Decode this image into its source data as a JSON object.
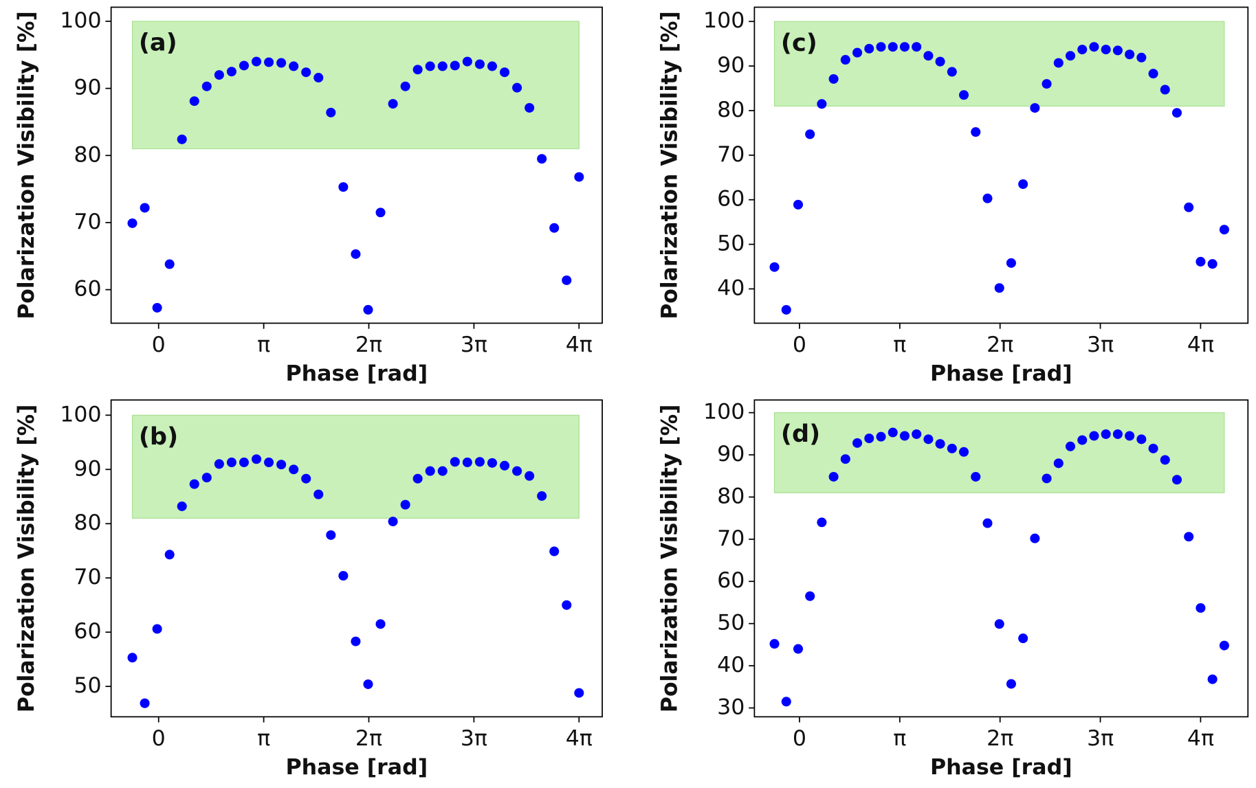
{
  "chart_data": [
    {
      "type": "scatter",
      "panel_label": "(a)",
      "xlabel": "Phase [rad]",
      "ylabel": "Polarization Visibility [%]",
      "x": [
        -0.785,
        -0.414,
        -0.043,
        0.328,
        0.698,
        1.069,
        1.44,
        1.811,
        2.182,
        2.553,
        2.924,
        3.295,
        3.666,
        4.037,
        4.407,
        4.778,
        5.149,
        5.52,
        5.891,
        6.262,
        6.633,
        7.004,
        7.375,
        7.745,
        8.116,
        8.487,
        8.858,
        9.229,
        9.6,
        9.971,
        10.342,
        10.713,
        11.084,
        11.454,
        11.825,
        12.196,
        12.567
      ],
      "series": [
        {
          "color": "#0000ff",
          "values": [
            69.9,
            72.2,
            57.3,
            63.8,
            82.4,
            88.1,
            90.3,
            92.0,
            92.5,
            93.4,
            94.0,
            93.9,
            93.8,
            93.3,
            92.4,
            91.6,
            86.4,
            75.3,
            65.3,
            57.0,
            71.5,
            87.7,
            90.3,
            92.8,
            93.3,
            93.3,
            93.4,
            94.0,
            93.6,
            93.3,
            92.4,
            90.1,
            87.1,
            79.5,
            69.2,
            61.4,
            76.8
          ]
        }
      ],
      "xlim": [
        -1.42,
        13.26
      ],
      "ylim": [
        55.0,
        102.1
      ],
      "xticks": [
        0,
        {
          "value": 3.14159,
          "label": "π"
        },
        {
          "value": 6.28319,
          "label": "2π"
        },
        {
          "value": 9.42478,
          "label": "3π"
        },
        {
          "value": 12.56637,
          "label": "4π"
        }
      ],
      "yticks": [
        60,
        70,
        80,
        90,
        100
      ],
      "band": {
        "xlim": [
          -0.785,
          12.567
        ],
        "ylim": [
          81,
          100
        ],
        "color": "#c8f0b8"
      }
    },
    {
      "type": "scatter",
      "panel_label": "(b)",
      "xlabel": "Phase [rad]",
      "ylabel": "Polarization Visibility [%]",
      "x": [
        -0.785,
        -0.414,
        -0.043,
        0.328,
        0.698,
        1.069,
        1.44,
        1.811,
        2.182,
        2.553,
        2.924,
        3.295,
        3.666,
        4.037,
        4.407,
        4.778,
        5.149,
        5.52,
        5.891,
        6.262,
        6.633,
        7.004,
        7.375,
        7.745,
        8.116,
        8.487,
        8.858,
        9.229,
        9.6,
        9.971,
        10.342,
        10.713,
        11.084,
        11.454,
        11.825,
        12.196,
        12.567
      ],
      "series": [
        {
          "color": "#0000ff",
          "values": [
            55.3,
            46.9,
            60.6,
            74.3,
            83.2,
            87.3,
            88.5,
            91.0,
            91.3,
            91.3,
            91.9,
            91.3,
            90.9,
            90.0,
            88.3,
            85.4,
            77.9,
            70.4,
            58.3,
            50.4,
            61.5,
            80.4,
            83.5,
            88.3,
            89.7,
            89.7,
            91.4,
            91.3,
            91.4,
            91.2,
            90.7,
            89.7,
            88.8,
            85.1,
            74.9,
            65.0,
            48.8
          ]
        }
      ],
      "xlim": [
        -1.42,
        13.26
      ],
      "ylim": [
        44.4,
        102.8
      ],
      "xticks": [
        0,
        {
          "value": 3.14159,
          "label": "π"
        },
        {
          "value": 6.28319,
          "label": "2π"
        },
        {
          "value": 9.42478,
          "label": "3π"
        },
        {
          "value": 12.56637,
          "label": "4π"
        }
      ],
      "yticks": [
        50,
        60,
        70,
        80,
        90,
        100
      ],
      "band": {
        "xlim": [
          -0.785,
          12.567
        ],
        "ylim": [
          81,
          100
        ],
        "color": "#c8f0b8"
      }
    },
    {
      "type": "scatter",
      "panel_label": "(c)",
      "xlabel": "Phase [rad]",
      "ylabel": "Polarization Visibility [%]",
      "x": [
        -0.785,
        -0.414,
        -0.043,
        0.328,
        0.698,
        1.069,
        1.44,
        1.811,
        2.182,
        2.553,
        2.924,
        3.295,
        3.666,
        4.037,
        4.407,
        4.778,
        5.149,
        5.52,
        5.891,
        6.262,
        6.633,
        7.004,
        7.375,
        7.745,
        8.116,
        8.487,
        8.858,
        9.229,
        9.6,
        9.971,
        10.342,
        10.713,
        11.084,
        11.454,
        11.825,
        12.196,
        12.567,
        12.938,
        13.309
      ],
      "series": [
        {
          "color": "#0000ff",
          "values": [
            44.9,
            35.3,
            58.9,
            74.7,
            81.5,
            87.1,
            91.4,
            93.0,
            93.9,
            94.3,
            94.3,
            94.3,
            94.3,
            92.3,
            91.0,
            88.7,
            83.5,
            75.2,
            60.3,
            40.2,
            45.8,
            63.5,
            80.6,
            86.0,
            90.7,
            92.3,
            93.7,
            94.3,
            93.7,
            93.5,
            92.6,
            91.9,
            88.3,
            84.7,
            79.5,
            58.3,
            46.1,
            45.6,
            53.3
          ]
        }
      ],
      "xlim": [
        -1.413,
        14.05
      ],
      "ylim": [
        32.3,
        103.2
      ],
      "xticks": [
        0,
        {
          "value": 3.14159,
          "label": "π"
        },
        {
          "value": 6.28319,
          "label": "2π"
        },
        {
          "value": 9.42478,
          "label": "3π"
        },
        {
          "value": 12.56637,
          "label": "4π"
        }
      ],
      "yticks": [
        40,
        50,
        60,
        70,
        80,
        90,
        100
      ],
      "band": {
        "xlim": [
          -0.785,
          13.309
        ],
        "ylim": [
          81,
          100
        ],
        "color": "#c8f0b8"
      }
    },
    {
      "type": "scatter",
      "panel_label": "(d)",
      "xlabel": "Phase [rad]",
      "ylabel": "Polarization Visibility [%]",
      "x": [
        -0.785,
        -0.414,
        -0.043,
        0.328,
        0.698,
        1.069,
        1.44,
        1.811,
        2.182,
        2.553,
        2.924,
        3.295,
        3.666,
        4.037,
        4.407,
        4.778,
        5.149,
        5.52,
        5.891,
        6.262,
        6.633,
        7.004,
        7.375,
        7.745,
        8.116,
        8.487,
        8.858,
        9.229,
        9.6,
        9.971,
        10.342,
        10.713,
        11.084,
        11.454,
        11.825,
        12.196,
        12.567,
        12.938,
        13.309
      ],
      "series": [
        {
          "color": "#0000ff",
          "values": [
            45.2,
            31.5,
            44.0,
            56.5,
            74.0,
            84.8,
            89.0,
            92.8,
            93.9,
            94.3,
            95.3,
            94.5,
            94.9,
            93.7,
            92.6,
            91.5,
            90.7,
            84.8,
            73.8,
            49.9,
            35.7,
            46.5,
            70.2,
            84.4,
            88.0,
            92.0,
            93.5,
            94.5,
            94.9,
            94.9,
            94.5,
            93.7,
            91.5,
            88.8,
            84.1,
            70.6,
            53.7,
            36.8,
            44.8
          ]
        }
      ],
      "xlim": [
        -1.413,
        14.05
      ],
      "ylim": [
        27.9,
        103.0
      ],
      "xticks": [
        0,
        {
          "value": 3.14159,
          "label": "π"
        },
        {
          "value": 6.28319,
          "label": "2π"
        },
        {
          "value": 9.42478,
          "label": "3π"
        },
        {
          "value": 12.56637,
          "label": "4π"
        }
      ],
      "yticks": [
        30,
        40,
        50,
        60,
        70,
        80,
        90,
        100
      ],
      "band": {
        "xlim": [
          -0.785,
          13.309
        ],
        "ylim": [
          81,
          100
        ],
        "color": "#c8f0b8"
      }
    }
  ]
}
